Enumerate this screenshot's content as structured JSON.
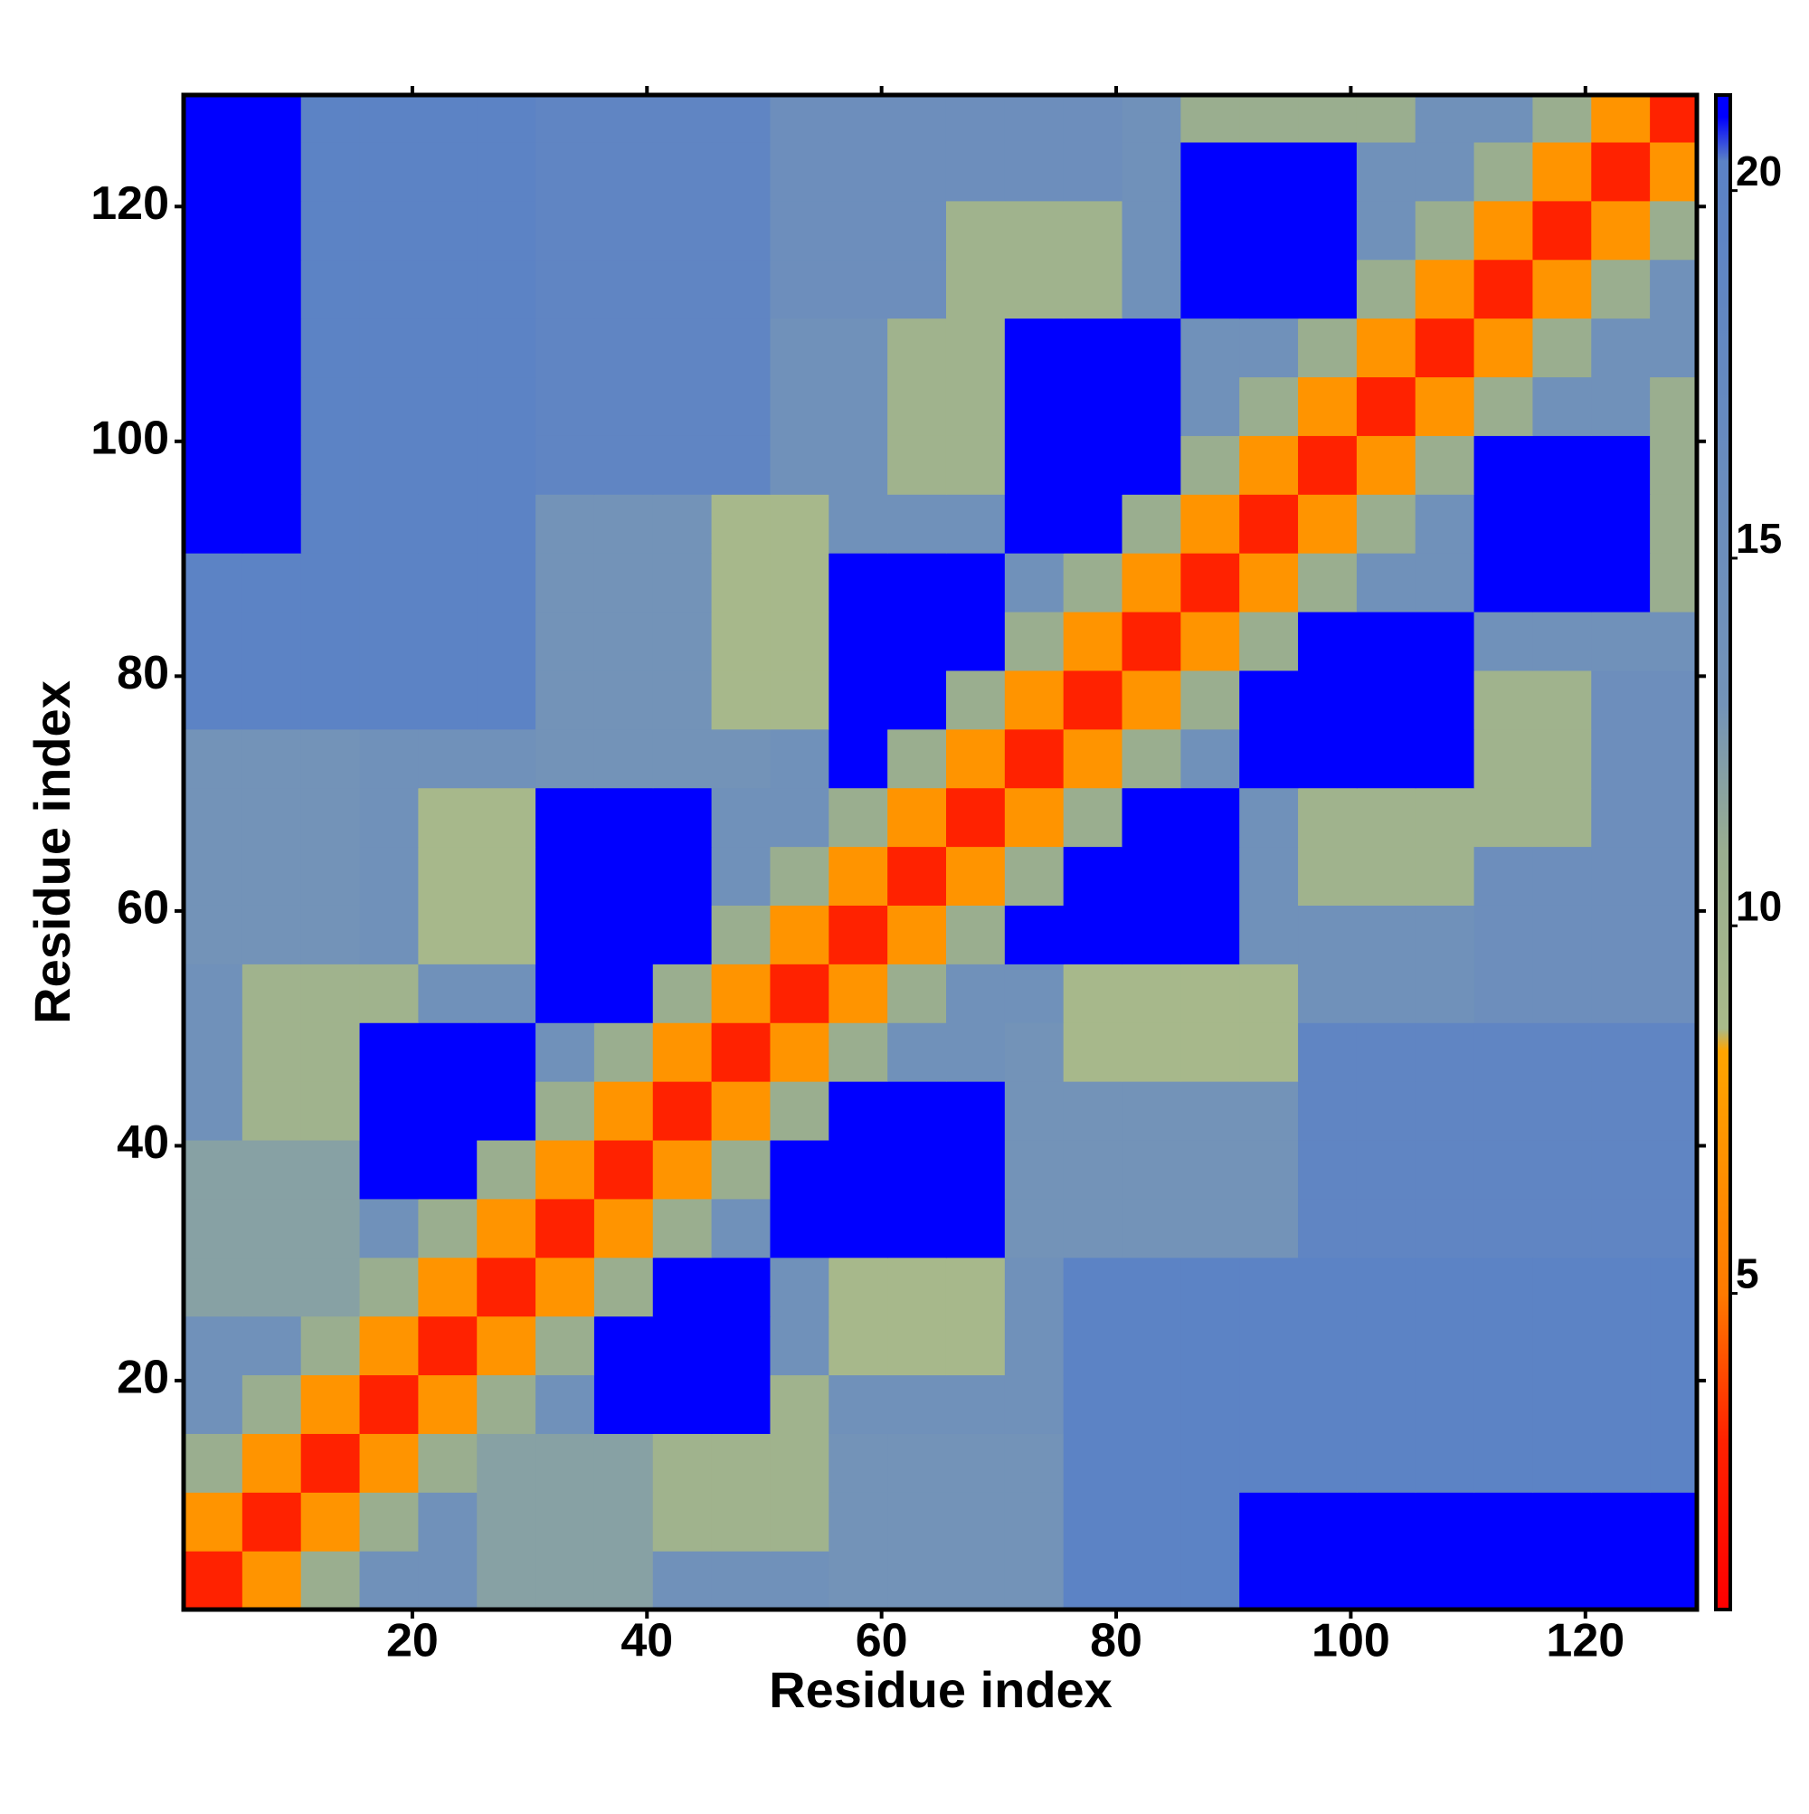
{
  "chart_data": {
    "type": "heatmap",
    "x_label": "Residue index",
    "y_label": "Residue index",
    "xlim": [
      0.5,
      129.5
    ],
    "ylim": [
      0.5,
      129.5
    ],
    "xticks": [
      20,
      40,
      60,
      80,
      100,
      120
    ],
    "yticks": [
      20,
      40,
      60,
      80,
      100,
      120
    ],
    "xbins": [
      0.5,
      5.5,
      10.5,
      15.5,
      20.5,
      25.5,
      30.5,
      35.5,
      40.5,
      45.5,
      50.5,
      55.5,
      60.5,
      65.5,
      70.5,
      75.5,
      80.5,
      85.5,
      90.5,
      95.5,
      100.5,
      105.5,
      110.5,
      115.5,
      120.5,
      125.5,
      129.5
    ],
    "ybins": [
      0.5,
      5.5,
      10.5,
      15.5,
      20.5,
      25.5,
      30.5,
      35.5,
      40.5,
      45.5,
      50.5,
      55.5,
      60.5,
      65.5,
      70.5,
      75.5,
      80.5,
      85.5,
      90.5,
      95.5,
      100.5,
      105.5,
      110.5,
      115.5,
      120.5,
      125.5,
      129.5
    ],
    "z": [
      [
        3,
        7,
        11,
        14,
        14,
        12,
        12,
        12,
        14,
        14,
        14,
        13,
        13,
        13,
        13,
        20,
        20,
        20,
        21,
        21,
        21,
        21,
        21,
        21,
        21,
        21
      ],
      [
        7,
        3,
        7,
        11,
        14,
        12,
        12,
        12,
        10,
        10,
        10,
        13,
        13,
        13,
        13,
        20,
        20,
        20,
        21,
        21,
        21,
        21,
        21,
        21,
        21,
        21
      ],
      [
        11,
        7,
        3,
        7,
        11,
        12,
        12,
        12,
        10,
        10,
        10,
        13,
        13,
        13,
        13,
        20,
        20,
        20,
        20,
        20,
        20,
        20,
        20,
        20,
        20,
        20
      ],
      [
        14,
        11,
        7,
        3,
        7,
        11,
        14,
        21,
        21,
        21,
        10,
        14,
        14,
        14,
        14,
        20,
        20,
        20,
        20,
        20,
        20,
        20,
        20,
        20,
        20,
        20
      ],
      [
        14,
        14,
        11,
        7,
        3,
        7,
        11,
        21,
        21,
        21,
        14,
        9,
        9,
        9,
        14,
        20,
        20,
        20,
        20,
        20,
        20,
        20,
        20,
        20,
        20,
        20
      ],
      [
        12,
        12,
        12,
        11,
        7,
        3,
        7,
        11,
        21,
        21,
        14,
        9,
        9,
        9,
        14,
        20,
        20,
        20,
        20,
        20,
        20,
        20,
        20,
        20,
        20,
        20
      ],
      [
        12,
        12,
        12,
        14,
        11,
        7,
        3,
        7,
        11,
        14,
        21,
        21,
        21,
        21,
        13,
        13,
        13,
        13,
        13,
        19,
        19,
        19,
        19,
        19,
        19,
        19
      ],
      [
        12,
        12,
        12,
        21,
        21,
        11,
        7,
        3,
        7,
        11,
        21,
        21,
        21,
        21,
        13,
        13,
        13,
        13,
        13,
        19,
        19,
        19,
        19,
        19,
        19,
        19
      ],
      [
        14,
        10,
        10,
        21,
        21,
        21,
        11,
        7,
        3,
        7,
        11,
        21,
        21,
        21,
        13,
        13,
        13,
        13,
        13,
        19,
        19,
        19,
        19,
        19,
        19,
        19
      ],
      [
        14,
        10,
        10,
        21,
        21,
        21,
        14,
        11,
        7,
        3,
        7,
        11,
        14,
        14,
        13,
        9,
        9,
        9,
        9,
        19,
        19,
        19,
        19,
        19,
        19,
        19
      ],
      [
        14,
        10,
        10,
        10,
        14,
        14,
        21,
        21,
        11,
        7,
        3,
        7,
        11,
        14,
        14,
        9,
        9,
        9,
        9,
        14,
        14,
        14,
        15,
        15,
        15,
        15
      ],
      [
        13,
        13,
        13,
        14,
        9,
        9,
        21,
        21,
        21,
        11,
        7,
        3,
        7,
        11,
        21,
        21,
        21,
        21,
        14,
        14,
        14,
        14,
        15,
        15,
        15,
        15
      ],
      [
        13,
        13,
        13,
        14,
        9,
        9,
        21,
        21,
        21,
        14,
        11,
        7,
        3,
        7,
        11,
        21,
        21,
        21,
        14,
        10,
        10,
        10,
        15,
        15,
        15,
        15
      ],
      [
        13,
        13,
        13,
        14,
        9,
        9,
        21,
        21,
        21,
        14,
        14,
        11,
        7,
        3,
        7,
        11,
        21,
        21,
        14,
        10,
        10,
        10,
        10,
        10,
        15,
        15
      ],
      [
        13,
        13,
        13,
        14,
        14,
        14,
        13,
        13,
        13,
        13,
        14,
        21,
        11,
        7,
        3,
        7,
        11,
        14,
        21,
        21,
        21,
        21,
        10,
        10,
        15,
        15
      ],
      [
        20,
        20,
        20,
        20,
        20,
        20,
        13,
        13,
        13,
        9,
        9,
        21,
        21,
        11,
        7,
        3,
        7,
        11,
        21,
        21,
        21,
        21,
        10,
        10,
        15,
        15
      ],
      [
        20,
        20,
        20,
        20,
        20,
        20,
        13,
        13,
        13,
        9,
        9,
        21,
        21,
        21,
        11,
        7,
        3,
        7,
        11,
        21,
        21,
        21,
        14,
        14,
        14,
        14
      ],
      [
        20,
        20,
        20,
        20,
        20,
        20,
        13,
        13,
        13,
        9,
        9,
        21,
        21,
        21,
        14,
        11,
        7,
        3,
        7,
        11,
        14,
        14,
        21,
        21,
        21,
        11
      ],
      [
        21,
        21,
        20,
        20,
        20,
        20,
        13,
        13,
        13,
        9,
        9,
        14,
        14,
        14,
        21,
        21,
        11,
        7,
        3,
        7,
        11,
        14,
        21,
        21,
        21,
        11
      ],
      [
        21,
        21,
        20,
        20,
        20,
        20,
        19,
        19,
        19,
        19,
        14,
        14,
        10,
        10,
        21,
        21,
        21,
        11,
        7,
        3,
        7,
        11,
        21,
        21,
        21,
        11
      ],
      [
        21,
        21,
        20,
        20,
        20,
        20,
        19,
        19,
        19,
        19,
        14,
        14,
        10,
        10,
        21,
        21,
        21,
        14,
        11,
        7,
        3,
        7,
        11,
        14,
        14,
        11
      ],
      [
        21,
        21,
        20,
        20,
        20,
        20,
        19,
        19,
        19,
        19,
        14,
        14,
        10,
        10,
        21,
        21,
        21,
        14,
        14,
        11,
        7,
        3,
        7,
        11,
        14,
        14
      ],
      [
        21,
        21,
        20,
        20,
        20,
        20,
        19,
        19,
        19,
        19,
        15,
        15,
        15,
        10,
        10,
        10,
        14,
        21,
        21,
        21,
        11,
        7,
        3,
        7,
        11,
        14
      ],
      [
        21,
        21,
        20,
        20,
        20,
        20,
        19,
        19,
        19,
        19,
        15,
        15,
        15,
        10,
        10,
        10,
        14,
        21,
        21,
        21,
        14,
        11,
        7,
        3,
        7,
        11
      ],
      [
        21,
        21,
        20,
        20,
        20,
        20,
        19,
        19,
        19,
        19,
        15,
        15,
        15,
        15,
        15,
        15,
        14,
        21,
        21,
        21,
        14,
        14,
        11,
        7,
        3,
        7
      ],
      [
        21,
        21,
        20,
        20,
        20,
        20,
        19,
        19,
        19,
        19,
        15,
        15,
        15,
        15,
        15,
        15,
        14,
        11,
        11,
        11,
        11,
        14,
        14,
        11,
        7,
        3
      ]
    ],
    "colorbar": {
      "lim": [
        0.7,
        21.3
      ],
      "ticks": [
        5,
        10,
        15,
        20
      ],
      "colorscale": [
        [
          0.7,
          "#ff0000"
        ],
        [
          3,
          "#ff2200"
        ],
        [
          5,
          "#ff7a00"
        ],
        [
          8.3,
          "#ffa500"
        ],
        [
          8.6,
          "#a9ba8a"
        ],
        [
          11,
          "#9aae8f"
        ],
        [
          13,
          "#7393b8"
        ],
        [
          20.4,
          "#5b82c6"
        ],
        [
          21,
          "#0000ff"
        ]
      ]
    }
  }
}
